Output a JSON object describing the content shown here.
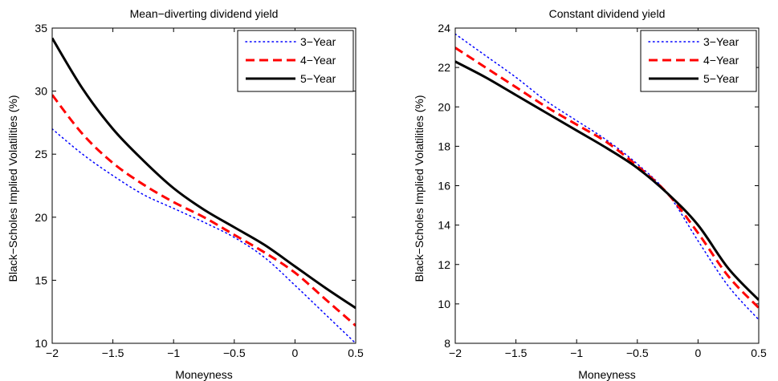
{
  "chart_data": [
    {
      "type": "line",
      "title": "Mean−diverting dividend yield",
      "xlabel": "Moneyness",
      "ylabel": "Black−Scholes Implied Volatilities (%)",
      "xlim": [
        -2,
        0.5
      ],
      "ylim": [
        10,
        35
      ],
      "xticks": [
        -2,
        -1.5,
        -1,
        -0.5,
        0,
        0.5
      ],
      "xtick_labels": [
        "−2",
        "−1.5",
        "−1",
        "−0.5",
        "0",
        "0.5"
      ],
      "yticks": [
        10,
        15,
        20,
        25,
        30,
        35
      ],
      "ytick_labels": [
        "10",
        "15",
        "20",
        "25",
        "30",
        "35"
      ],
      "grid": false,
      "legend_position": "top-right",
      "series": [
        {
          "name": "3−Year",
          "color": "#0000ff",
          "style": "dotted",
          "x": [
            -2,
            -1.75,
            -1.5,
            -1.25,
            -1,
            -0.75,
            -0.5,
            -0.25,
            0,
            0.25,
            0.5
          ],
          "y": [
            27.0,
            25.0,
            23.3,
            21.8,
            20.7,
            19.6,
            18.4,
            16.8,
            14.6,
            12.3,
            10.0
          ]
        },
        {
          "name": "4−Year",
          "color": "#ff0000",
          "style": "dashed",
          "x": [
            -2,
            -1.75,
            -1.5,
            -1.25,
            -1,
            -0.75,
            -0.5,
            -0.25,
            0,
            0.25,
            0.5
          ],
          "y": [
            29.7,
            26.6,
            24.3,
            22.6,
            21.2,
            20.0,
            18.6,
            17.2,
            15.6,
            13.5,
            11.4
          ]
        },
        {
          "name": "5−Year",
          "color": "#000000",
          "style": "solid",
          "x": [
            -2,
            -1.75,
            -1.5,
            -1.25,
            -1,
            -0.75,
            -0.5,
            -0.25,
            0,
            0.25,
            0.5
          ],
          "y": [
            34.2,
            30.2,
            27.0,
            24.5,
            22.3,
            20.6,
            19.2,
            17.8,
            16.1,
            14.4,
            12.8
          ]
        }
      ]
    },
    {
      "type": "line",
      "title": "Constant dividend yield",
      "xlabel": "Moneyness",
      "ylabel": "Black−Scholes Implied Volatilities (%)",
      "xlim": [
        -2,
        0.5
      ],
      "ylim": [
        8,
        24
      ],
      "xticks": [
        -2,
        -1.5,
        -1,
        -0.5,
        0,
        0.5
      ],
      "xtick_labels": [
        "−2",
        "−1.5",
        "−1",
        "−0.5",
        "0",
        "0.5"
      ],
      "yticks": [
        8,
        10,
        12,
        14,
        16,
        18,
        20,
        22,
        24
      ],
      "ytick_labels": [
        "8",
        "10",
        "12",
        "14",
        "16",
        "18",
        "20",
        "22",
        "24"
      ],
      "grid": false,
      "legend_position": "top-right",
      "series": [
        {
          "name": "3−Year",
          "color": "#0000ff",
          "style": "dotted",
          "x": [
            -2,
            -1.75,
            -1.5,
            -1.25,
            -1,
            -0.75,
            -0.5,
            -0.25,
            0,
            0.25,
            0.5
          ],
          "y": [
            23.7,
            22.6,
            21.5,
            20.3,
            19.3,
            18.3,
            17.1,
            15.6,
            13.2,
            10.9,
            9.2
          ]
        },
        {
          "name": "4−Year",
          "color": "#ff0000",
          "style": "dashed",
          "x": [
            -2,
            -1.75,
            -1.5,
            -1.25,
            -1,
            -0.75,
            -0.5,
            -0.25,
            0,
            0.25,
            0.5
          ],
          "y": [
            23.0,
            22.0,
            21.0,
            20.0,
            19.1,
            18.2,
            17.0,
            15.6,
            13.6,
            11.4,
            9.8
          ]
        },
        {
          "name": "5−Year",
          "color": "#000000",
          "style": "solid",
          "x": [
            -2,
            -1.75,
            -1.5,
            -1.25,
            -1,
            -0.75,
            -0.5,
            -0.25,
            0,
            0.25,
            0.5
          ],
          "y": [
            22.3,
            21.5,
            20.6,
            19.7,
            18.8,
            17.9,
            16.9,
            15.6,
            14.0,
            11.8,
            10.2
          ]
        }
      ]
    }
  ]
}
